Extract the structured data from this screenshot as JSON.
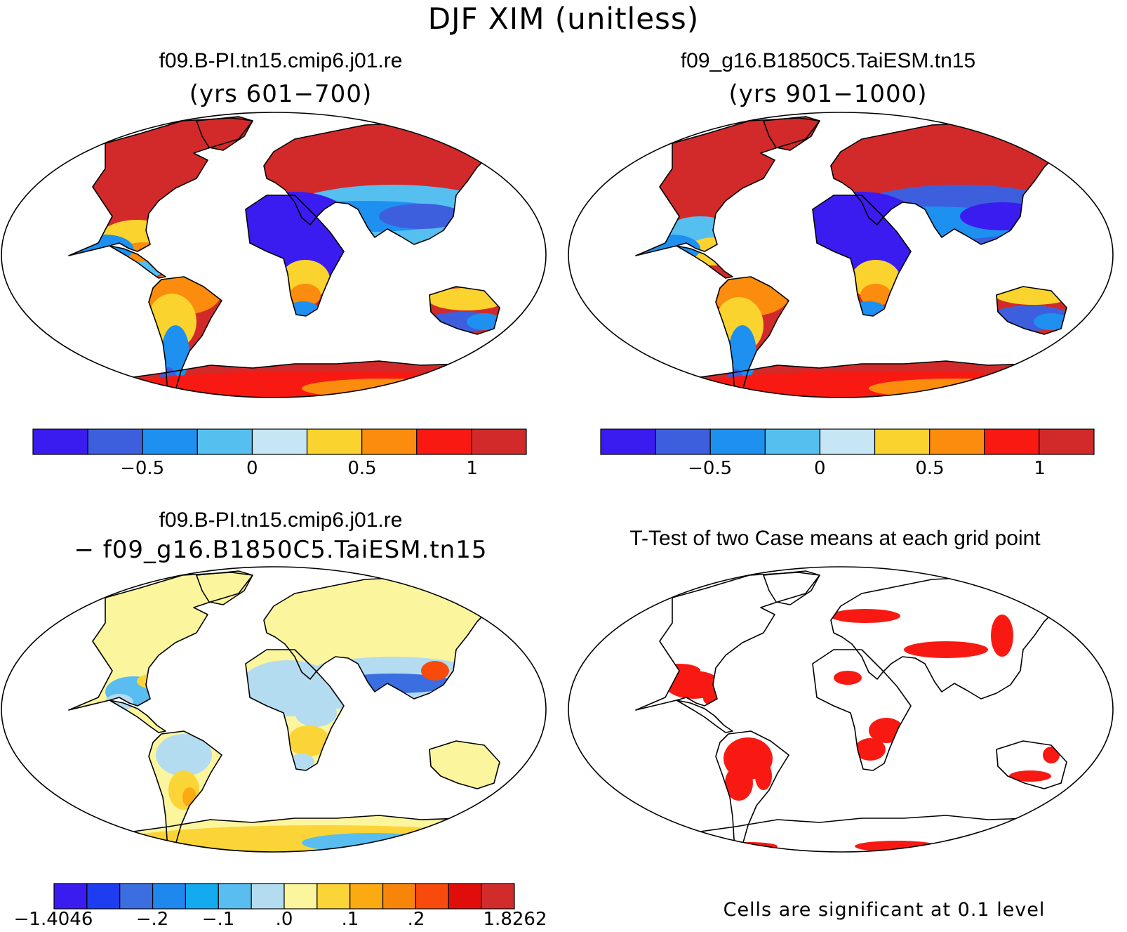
{
  "figure": {
    "title": "DJF XIM (unitless)",
    "note": "Cells are significant at 0.1 level"
  },
  "panels": [
    {
      "title": "f09.B-PI.tn15.cmip6.j01.re",
      "subtitle": "(yrs 601−700)"
    },
    {
      "title": "f09_g16.B1850C5.TaiESM.tn15",
      "subtitle": "(yrs 901−1000)"
    },
    {
      "title": "f09.B-PI.tn15.cmip6.j01.re",
      "subtitle": "− f09_g16.B1850C5.TaiESM.tn15"
    },
    {
      "title": "T-Test of two Case means at each grid point",
      "subtitle": ""
    }
  ],
  "colorbars": {
    "main": {
      "colors": [
        "#3a1cf0",
        "#3d5fde",
        "#1e90f0",
        "#55bff0",
        "#c6e6f5",
        "#fbd32e",
        "#fb8c0d",
        "#f81a12",
        "#d22a2a"
      ],
      "ticks": [
        "−0.5",
        "0",
        "0.5",
        "1"
      ]
    },
    "diff": {
      "colors": [
        "#3a1cf0",
        "#1f3df0",
        "#3b6ee0",
        "#1e88ee",
        "#14aaf0",
        "#59bdf0",
        "#b4dcf0",
        "#fbf59d",
        "#fbd437",
        "#fbaa12",
        "#f8850a",
        "#f84a0c",
        "#e00d0a",
        "#d22b2b"
      ],
      "ticks": [
        "−1.4046",
        "−.2",
        "−.1",
        ".0",
        ".1",
        ".2",
        "1.8262"
      ]
    }
  },
  "chart_data": [
    {
      "type": "heatmap",
      "title": "f09.B-PI.tn15.cmip6.j01.re",
      "subtitle": "(yrs 601−700)",
      "projection": "robinson",
      "colorbar_levels": [
        -0.75,
        -0.5,
        -0.25,
        0,
        0.25,
        0.5,
        0.75,
        1
      ],
      "colorbar_tick_labels": [
        "−0.5",
        "0",
        "0.5",
        "1"
      ],
      "regions": [
        {
          "region": "North America high latitudes",
          "level": "> 1"
        },
        {
          "region": "Northern Eurasia",
          "level": "> 1"
        },
        {
          "region": "Greenland coast",
          "level": "> 1"
        },
        {
          "region": "Eastern United States",
          "level": "0.25 to 0.75"
        },
        {
          "region": "Sahara / Arabia",
          "level": "< -0.75"
        },
        {
          "region": "India / Southeast Asia",
          "level": "-0.75 to -0.25"
        },
        {
          "region": "Amazon basin",
          "level": "0.25 to 0.75"
        },
        {
          "region": "Southern Africa",
          "level": "0.25 to 0.75"
        },
        {
          "region": "Northern Australia",
          "level": "0.25 to 0.5"
        },
        {
          "region": "Southern Australia",
          "level": "-0.75 to -0.25"
        },
        {
          "region": "Antarctica",
          "level": "0.75 to > 1"
        }
      ]
    },
    {
      "type": "heatmap",
      "title": "f09_g16.B1850C5.TaiESM.tn15",
      "subtitle": "(yrs 901−1000)",
      "projection": "robinson",
      "colorbar_levels": [
        -0.75,
        -0.5,
        -0.25,
        0,
        0.25,
        0.5,
        0.75,
        1
      ],
      "colorbar_tick_labels": [
        "−0.5",
        "0",
        "0.5",
        "1"
      ],
      "regions": [
        {
          "region": "North America high latitudes",
          "level": "> 1"
        },
        {
          "region": "Northern Eurasia",
          "level": "> 1"
        },
        {
          "region": "Eastern United States",
          "level": "0 to 0.5"
        },
        {
          "region": "Sahara / Arabia",
          "level": "< -0.75"
        },
        {
          "region": "Central Asia / China",
          "level": "-0.75 to 0"
        },
        {
          "region": "Amazon basin",
          "level": "0.25 to 0.75"
        },
        {
          "region": "Southern Africa",
          "level": "0 to 0.5"
        },
        {
          "region": "Australia",
          "level": "-0.75 to 0.5"
        },
        {
          "region": "Antarctica",
          "level": "0.75 to > 1"
        }
      ]
    },
    {
      "type": "heatmap",
      "title": "f09.B-PI.tn15.cmip6.j01.re",
      "subtitle": "− f09_g16.B1850C5.TaiESM.tn15",
      "projection": "robinson",
      "colorbar_tick_labels": [
        "−1.4046",
        "−.2",
        "−.1",
        ".0",
        ".1",
        ".2",
        "1.8262"
      ],
      "range": [
        -1.4046,
        1.8262
      ],
      "regions": [
        {
          "region": "North America high latitudes",
          "level": "0 to 0.05"
        },
        {
          "region": "Central United States",
          "level": "-0.1 to 0"
        },
        {
          "region": "Northern Eurasia",
          "level": "0 to 0.05"
        },
        {
          "region": "Central Asia / China",
          "level": "-0.2 to -0.05"
        },
        {
          "region": "Northeast China",
          "level": "0.1 to > 0.2"
        },
        {
          "region": "Sahara",
          "level": "-0.05 to 0"
        },
        {
          "region": "Amazon / Brazil",
          "level": "0 to 0.1"
        },
        {
          "region": "Southern Africa",
          "level": "0 to 0.1"
        },
        {
          "region": "Australia",
          "level": "0 to 0.05"
        },
        {
          "region": "Antarctica",
          "level": "-0.2 to 0.2 (noisy)"
        }
      ]
    },
    {
      "type": "heatmap",
      "title": "T-Test of two Case means at each grid point",
      "projection": "robinson",
      "note": "Cells are significant at 0.1 level",
      "significant_regions": [
        "Eastern North America",
        "Central Canada",
        "Central Europe",
        "Central Asia",
        "Northeast China",
        "Central Africa",
        "Southern Africa",
        "Brazil / South America",
        "Indonesia",
        "Eastern Australia",
        "Antarctic coast"
      ]
    }
  ]
}
